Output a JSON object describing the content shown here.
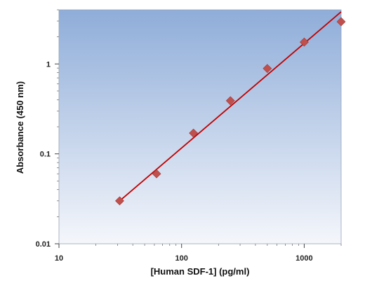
{
  "chart_data": {
    "type": "scatter",
    "title": "",
    "xlabel": "[Human SDF-1] (pg/ml)",
    "ylabel": "Absorbance (450 nm)",
    "x_scale": "log",
    "y_scale": "log",
    "xlim": [
      10,
      2000
    ],
    "ylim": [
      0.01,
      4
    ],
    "x_ticks": [
      10,
      100,
      1000
    ],
    "x_tick_labels": [
      "10",
      "100",
      "1000"
    ],
    "y_ticks": [
      0.01,
      0.1,
      1
    ],
    "y_tick_labels": [
      "0.01",
      "0.1",
      "1"
    ],
    "grid": false,
    "series": [
      {
        "marker": "diamond",
        "color": "#c0504d",
        "x": [
          31.25,
          62.5,
          125,
          250,
          500,
          1000,
          2000
        ],
        "y": [
          0.03,
          0.06,
          0.17,
          0.39,
          0.89,
          1.75,
          2.95
        ]
      }
    ],
    "fit_line": {
      "color": "#c00000",
      "x": [
        31.25,
        2000
      ],
      "y": [
        0.03,
        3.8
      ]
    },
    "colors": {
      "plot_top": "#8fadd9",
      "plot_bottom": "#f4f6fb",
      "marker": "#c0504d",
      "fit": "#c00000"
    }
  }
}
